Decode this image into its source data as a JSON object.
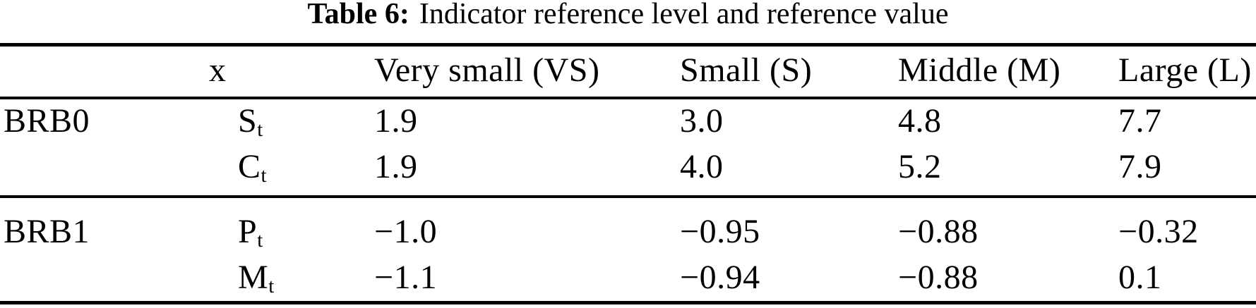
{
  "caption": {
    "label": "Table 6:",
    "title": "Indicator reference level and reference value"
  },
  "table": {
    "columns": [
      "",
      "x",
      "Very small (VS)",
      "Small (S)",
      "Middle (M)",
      "Large (L)"
    ],
    "sections": [
      {
        "group": "BRB0",
        "rows": [
          {
            "var": "S",
            "sub": "t",
            "values": [
              "1.9",
              "3.0",
              "4.8",
              "7.7"
            ]
          },
          {
            "var": "C",
            "sub": "t",
            "values": [
              "1.9",
              "4.0",
              "5.2",
              "7.9"
            ]
          }
        ]
      },
      {
        "group": "BRB1",
        "rows": [
          {
            "var": "P",
            "sub": "t",
            "values": [
              "−1.0",
              "−0.95",
              "−0.88",
              "−0.32"
            ]
          },
          {
            "var": "M",
            "sub": "t",
            "values": [
              "−1.1",
              "−0.94",
              "−0.88",
              "0.1"
            ]
          }
        ]
      }
    ]
  }
}
